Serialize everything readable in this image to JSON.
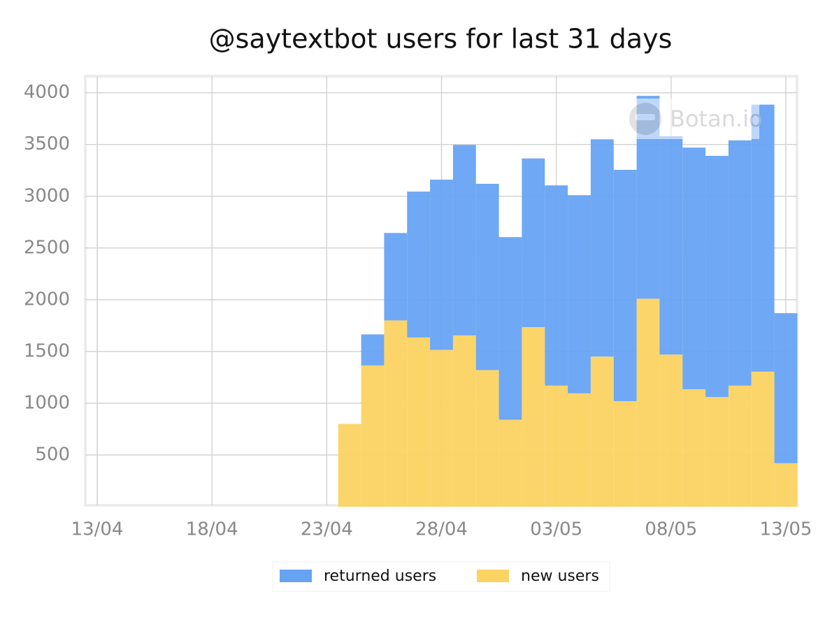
{
  "chart_data": {
    "type": "stacked-bar",
    "title": "@saytextbot users for last 31 days",
    "watermark": "Botan.io",
    "x": [
      "24/04",
      "25/04",
      "26/04",
      "27/04",
      "28/04",
      "29/04",
      "30/04",
      "01/05",
      "02/05",
      "03/05",
      "04/05",
      "05/05",
      "06/05",
      "07/05",
      "08/05",
      "09/05",
      "10/05",
      "11/05",
      "12/05",
      "13/05"
    ],
    "series": [
      {
        "name": "returned users",
        "color": "#67a3f3",
        "values": [
          0,
          300,
          845,
          1410,
          1645,
          1840,
          1800,
          1765,
          1630,
          1935,
          1915,
          2100,
          2235,
          1960,
          2110,
          2335,
          2330,
          2370,
          2580,
          1450
        ]
      },
      {
        "name": "new users",
        "color": "#fbd362",
        "values": [
          800,
          1365,
          1800,
          1635,
          1515,
          1655,
          1320,
          840,
          1735,
          1170,
          1095,
          1450,
          1020,
          2010,
          1470,
          1135,
          1060,
          1170,
          1305,
          420
        ]
      }
    ],
    "xlim": [
      "13/04",
      "13/05"
    ],
    "xticks": [
      "13/04",
      "18/04",
      "23/04",
      "28/04",
      "03/05",
      "08/05",
      "13/05"
    ],
    "ylim": [
      0,
      4160
    ],
    "yticks": [
      500,
      1000,
      1500,
      2000,
      2500,
      3000,
      3500,
      4000
    ],
    "grid": true,
    "legend": "bottom"
  }
}
